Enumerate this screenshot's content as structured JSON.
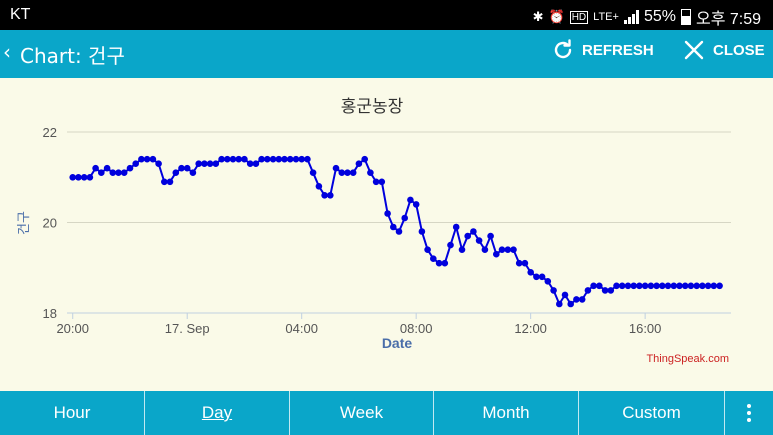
{
  "status": {
    "carrier": "KT",
    "network": "LTE+",
    "battery": "55%",
    "time": "오후 7:59"
  },
  "appbar": {
    "back_icon": "chevron-left-icon",
    "title": "Chart: 건구",
    "refresh_label": "REFRESH",
    "close_label": "CLOSE"
  },
  "chart_data": {
    "type": "line",
    "title": "홍군농장",
    "xlabel": "Date",
    "ylabel": "건구",
    "ylim": [
      18,
      22
    ],
    "yticks": [
      "18",
      "20",
      "22"
    ],
    "xticks": [
      "20:00",
      "17. Sep",
      "04:00",
      "08:00",
      "12:00",
      "16:00"
    ],
    "xlim_hours": [
      19.8,
      43.0
    ],
    "xtick_hours": [
      20,
      24,
      28,
      32,
      36,
      40
    ],
    "grid": true,
    "color": "#0000dd",
    "credit": "ThingSpeak.com",
    "series": [
      {
        "x": [
          20.0,
          20.2,
          20.4,
          20.6,
          20.8,
          21.0,
          21.2,
          21.4,
          21.6,
          21.8,
          22.0,
          22.2,
          22.4,
          22.6,
          22.8,
          23.0,
          23.2,
          23.4,
          23.6,
          23.8,
          24.0,
          24.2,
          24.4,
          24.6,
          24.8,
          25.0,
          25.2,
          25.4,
          25.6,
          25.8,
          26.0,
          26.2,
          26.4,
          26.6,
          26.8,
          27.0,
          27.2,
          27.4,
          27.6,
          27.8,
          28.0,
          28.2,
          28.4,
          28.6,
          28.8,
          29.0,
          29.2,
          29.4,
          29.6,
          29.8,
          30.0,
          30.2,
          30.4,
          30.6,
          30.8,
          31.0,
          31.2,
          31.4,
          31.6,
          31.8,
          32.0,
          32.2,
          32.4,
          32.6,
          32.8,
          33.0,
          33.2,
          33.4,
          33.6,
          33.8,
          34.0,
          34.2,
          34.4,
          34.6,
          34.8,
          35.0,
          35.2,
          35.4,
          35.6,
          35.8,
          36.0,
          36.2,
          36.4,
          36.6,
          36.8,
          37.0,
          37.2,
          37.4,
          37.6,
          37.8,
          38.0,
          38.2,
          38.4,
          38.6,
          38.8,
          39.0,
          39.2,
          39.4,
          39.6,
          39.8,
          40.0,
          40.2,
          40.4,
          40.6,
          40.8,
          41.0,
          41.2,
          41.4,
          41.6,
          41.8,
          42.0,
          42.2,
          42.4,
          42.6,
          42.8,
          43.0
        ],
        "y": [
          21.0,
          21.0,
          21.0,
          21.0,
          21.2,
          21.1,
          21.2,
          21.1,
          21.1,
          21.1,
          21.2,
          21.3,
          21.4,
          21.4,
          21.4,
          21.3,
          20.9,
          20.9,
          21.1,
          21.2,
          21.2,
          21.1,
          21.3,
          21.3,
          21.3,
          21.3,
          21.4,
          21.4,
          21.4,
          21.4,
          21.4,
          21.3,
          21.3,
          21.4,
          21.4,
          21.4,
          21.4,
          21.4,
          21.4,
          21.4,
          21.4,
          21.4,
          21.1,
          20.8,
          20.6,
          20.6,
          21.2,
          21.1,
          21.1,
          21.1,
          21.3,
          21.4,
          21.1,
          20.9,
          20.9,
          20.2,
          19.9,
          19.8,
          20.1,
          20.5,
          20.4,
          19.8,
          19.4,
          19.2,
          19.1,
          19.1,
          19.5,
          19.9,
          19.4,
          19.7,
          19.8,
          19.6,
          19.4,
          19.7,
          19.3,
          19.4,
          19.4,
          19.4,
          19.1,
          19.1,
          18.9,
          18.8,
          18.8,
          18.7,
          18.5,
          18.2,
          18.4,
          18.2,
          18.3,
          18.3,
          18.5,
          18.6,
          18.6,
          18.5,
          18.5,
          18.6,
          18.6,
          18.6,
          18.6,
          18.6,
          18.6,
          18.6,
          18.6,
          18.6,
          18.6,
          18.6,
          18.6,
          18.6,
          18.6,
          18.6,
          18.6,
          18.6,
          18.6,
          18.6,
          18.6,
          18.6
        ]
      }
    ]
  },
  "tabs": [
    {
      "label": "Hour",
      "active": false
    },
    {
      "label": "Day",
      "active": true
    },
    {
      "label": "Week",
      "active": false
    },
    {
      "label": "Month",
      "active": false
    },
    {
      "label": "Custom",
      "active": false
    }
  ],
  "menu_icon": "more-vertical-icon"
}
